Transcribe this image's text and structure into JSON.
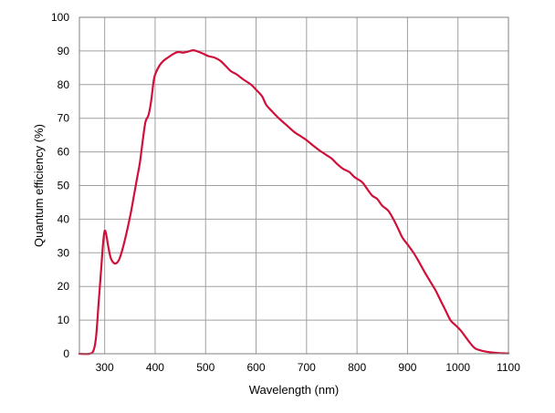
{
  "chart_data": {
    "type": "line",
    "title": "",
    "xlabel": "Wavelength (nm)",
    "ylabel": "Quantum efficiency (%)",
    "xlim": [
      250,
      1100
    ],
    "ylim": [
      0,
      100
    ],
    "x_ticks": [
      300,
      400,
      500,
      600,
      700,
      800,
      900,
      1000,
      1100
    ],
    "y_ticks": [
      0,
      10,
      20,
      30,
      40,
      50,
      60,
      70,
      80,
      90,
      100
    ],
    "grid": true,
    "legend": "none",
    "series": [
      {
        "color": "#d0103a",
        "points": [
          [
            250,
            0
          ],
          [
            270,
            0
          ],
          [
            278,
            1
          ],
          [
            283,
            5
          ],
          [
            288,
            15
          ],
          [
            293,
            25
          ],
          [
            297,
            33
          ],
          [
            300,
            36.5
          ],
          [
            303,
            35.5
          ],
          [
            307,
            32
          ],
          [
            312,
            28.5
          ],
          [
            318,
            27
          ],
          [
            324,
            27
          ],
          [
            330,
            28.5
          ],
          [
            337,
            32
          ],
          [
            345,
            37
          ],
          [
            352,
            42
          ],
          [
            358,
            47
          ],
          [
            364,
            52
          ],
          [
            370,
            57
          ],
          [
            376,
            64
          ],
          [
            381,
            69
          ],
          [
            387,
            71
          ],
          [
            392,
            75
          ],
          [
            397,
            81
          ],
          [
            400,
            83
          ],
          [
            408,
            85.5
          ],
          [
            416,
            87
          ],
          [
            425,
            88
          ],
          [
            435,
            89
          ],
          [
            445,
            89.7
          ],
          [
            455,
            89.5
          ],
          [
            465,
            89.8
          ],
          [
            475,
            90.2
          ],
          [
            485,
            89.8
          ],
          [
            495,
            89.2
          ],
          [
            505,
            88.5
          ],
          [
            518,
            88
          ],
          [
            530,
            87
          ],
          [
            540,
            85.5
          ],
          [
            550,
            84
          ],
          [
            562,
            83
          ],
          [
            575,
            81.5
          ],
          [
            590,
            80
          ],
          [
            600,
            78.5
          ],
          [
            612,
            76.5
          ],
          [
            620,
            74
          ],
          [
            632,
            72
          ],
          [
            645,
            70
          ],
          [
            660,
            68
          ],
          [
            675,
            66
          ],
          [
            690,
            64.5
          ],
          [
            700,
            63.5
          ],
          [
            712,
            62
          ],
          [
            725,
            60.5
          ],
          [
            740,
            59
          ],
          [
            750,
            58
          ],
          [
            760,
            56.5
          ],
          [
            772,
            55
          ],
          [
            785,
            54
          ],
          [
            795,
            52.5
          ],
          [
            810,
            51
          ],
          [
            820,
            49
          ],
          [
            830,
            47
          ],
          [
            840,
            46
          ],
          [
            850,
            44
          ],
          [
            862,
            42.5
          ],
          [
            872,
            40
          ],
          [
            882,
            37
          ],
          [
            890,
            34.5
          ],
          [
            900,
            32.5
          ],
          [
            912,
            30
          ],
          [
            922,
            27.5
          ],
          [
            935,
            24
          ],
          [
            945,
            21.5
          ],
          [
            955,
            19
          ],
          [
            965,
            16
          ],
          [
            975,
            13
          ],
          [
            985,
            10
          ],
          [
            995,
            8.5
          ],
          [
            1005,
            7
          ],
          [
            1015,
            5
          ],
          [
            1025,
            3
          ],
          [
            1035,
            1.5
          ],
          [
            1050,
            0.8
          ],
          [
            1065,
            0.4
          ],
          [
            1080,
            0.2
          ],
          [
            1100,
            0.1
          ]
        ]
      }
    ]
  }
}
